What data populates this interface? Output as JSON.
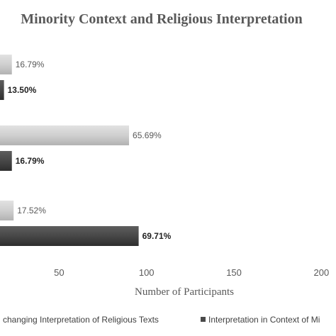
{
  "chart_data": {
    "type": "bar",
    "orientation": "horizontal",
    "title": "Minority Context and Religious Interpretation",
    "xlabel": "Number of Participants",
    "ylabel": "",
    "xlim": [
      0,
      200
    ],
    "xticks": [
      "50",
      "100",
      "150",
      "200"
    ],
    "grid": false,
    "legend_position": "bottom",
    "groups": 3,
    "series": [
      {
        "name": "Unchanging Interpretation of Religious Texts",
        "legend_label": "changing Interpretation of Religious Texts",
        "color": "#c8c8c8",
        "values": [
          23,
          90,
          24
        ],
        "labels": [
          "16.79%",
          "65.69%",
          "17.52%"
        ]
      },
      {
        "name": "Interpretation in Context of Minority",
        "legend_label": "Interpretation in Context of Mi",
        "color": "#4a4a4a",
        "values": [
          18.5,
          23,
          95.5
        ],
        "labels": [
          "13.50%",
          "16.79%",
          "69.71%"
        ]
      }
    ]
  }
}
